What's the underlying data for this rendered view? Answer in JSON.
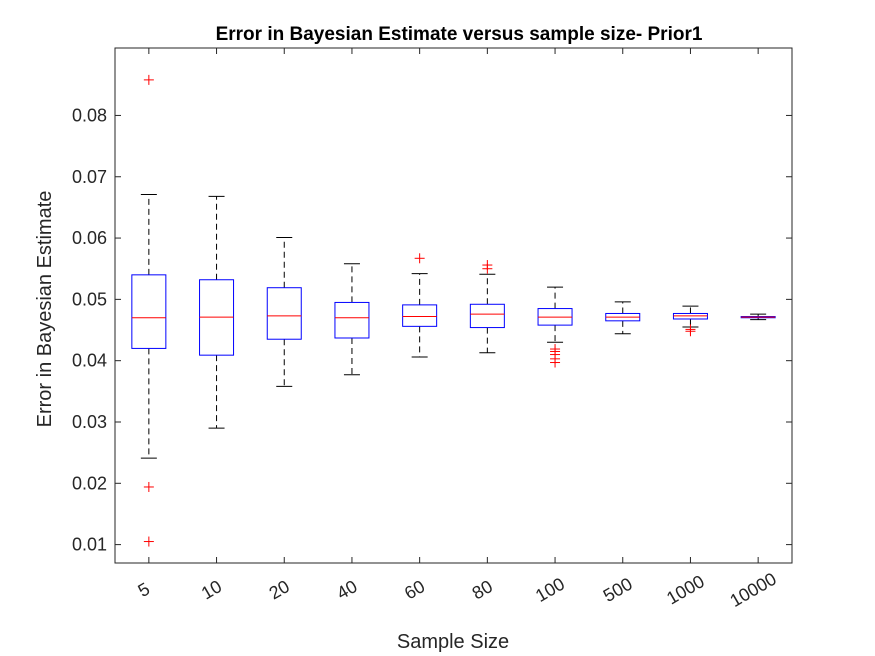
{
  "chart_data": {
    "type": "boxplot",
    "title": "Error in Bayesian Estimate versus sample size- Prior1",
    "xlabel": "Sample Size",
    "ylabel": "Error in Bayesian Estimate",
    "ylim": [
      0.007,
      0.091
    ],
    "yticks": [
      0.01,
      0.02,
      0.03,
      0.04,
      0.05,
      0.06,
      0.07,
      0.08
    ],
    "ytick_labels": [
      "0.01",
      "0.02",
      "0.03",
      "0.04",
      "0.05",
      "0.06",
      "0.07",
      "0.08"
    ],
    "categories": [
      "5",
      "10",
      "20",
      "40",
      "60",
      "80",
      "100",
      "500",
      "1000",
      "10000"
    ],
    "boxes": [
      {
        "category": "5",
        "whisker_low": 0.0241,
        "q1": 0.042,
        "median": 0.047,
        "q3": 0.054,
        "whisker_high": 0.0671,
        "outliers": [
          0.0858,
          0.0194,
          0.0105
        ]
      },
      {
        "category": "10",
        "whisker_low": 0.029,
        "q1": 0.0409,
        "median": 0.0471,
        "q3": 0.0532,
        "whisker_high": 0.0668,
        "outliers": []
      },
      {
        "category": "20",
        "whisker_low": 0.0358,
        "q1": 0.0435,
        "median": 0.0473,
        "q3": 0.0519,
        "whisker_high": 0.0601,
        "outliers": []
      },
      {
        "category": "40",
        "whisker_low": 0.0377,
        "q1": 0.0437,
        "median": 0.047,
        "q3": 0.0495,
        "whisker_high": 0.0558,
        "outliers": []
      },
      {
        "category": "60",
        "whisker_low": 0.0406,
        "q1": 0.0456,
        "median": 0.0472,
        "q3": 0.0491,
        "whisker_high": 0.0542,
        "outliers": [
          0.0567
        ]
      },
      {
        "category": "80",
        "whisker_low": 0.0413,
        "q1": 0.0454,
        "median": 0.0476,
        "q3": 0.0492,
        "whisker_high": 0.0541,
        "outliers": [
          0.055,
          0.0556
        ]
      },
      {
        "category": "100",
        "whisker_low": 0.043,
        "q1": 0.0458,
        "median": 0.0471,
        "q3": 0.0485,
        "whisker_high": 0.052,
        "outliers": [
          0.0419,
          0.0415,
          0.041,
          0.0403,
          0.0397
        ]
      },
      {
        "category": "500",
        "whisker_low": 0.0444,
        "q1": 0.0465,
        "median": 0.0471,
        "q3": 0.0477,
        "whisker_high": 0.0496,
        "outliers": []
      },
      {
        "category": "1000",
        "whisker_low": 0.0455,
        "q1": 0.0468,
        "median": 0.0473,
        "q3": 0.0477,
        "whisker_high": 0.0489,
        "outliers": [
          0.0451,
          0.0448
        ]
      },
      {
        "category": "10000",
        "whisker_low": 0.0467,
        "q1": 0.047,
        "median": 0.0471,
        "q3": 0.0472,
        "whisker_high": 0.0476,
        "outliers": []
      }
    ],
    "colors": {
      "box": "#0000ff",
      "median": "#ff0000",
      "whisker": "#000000",
      "outlier": "#ff0000",
      "axis": "#262626"
    }
  }
}
